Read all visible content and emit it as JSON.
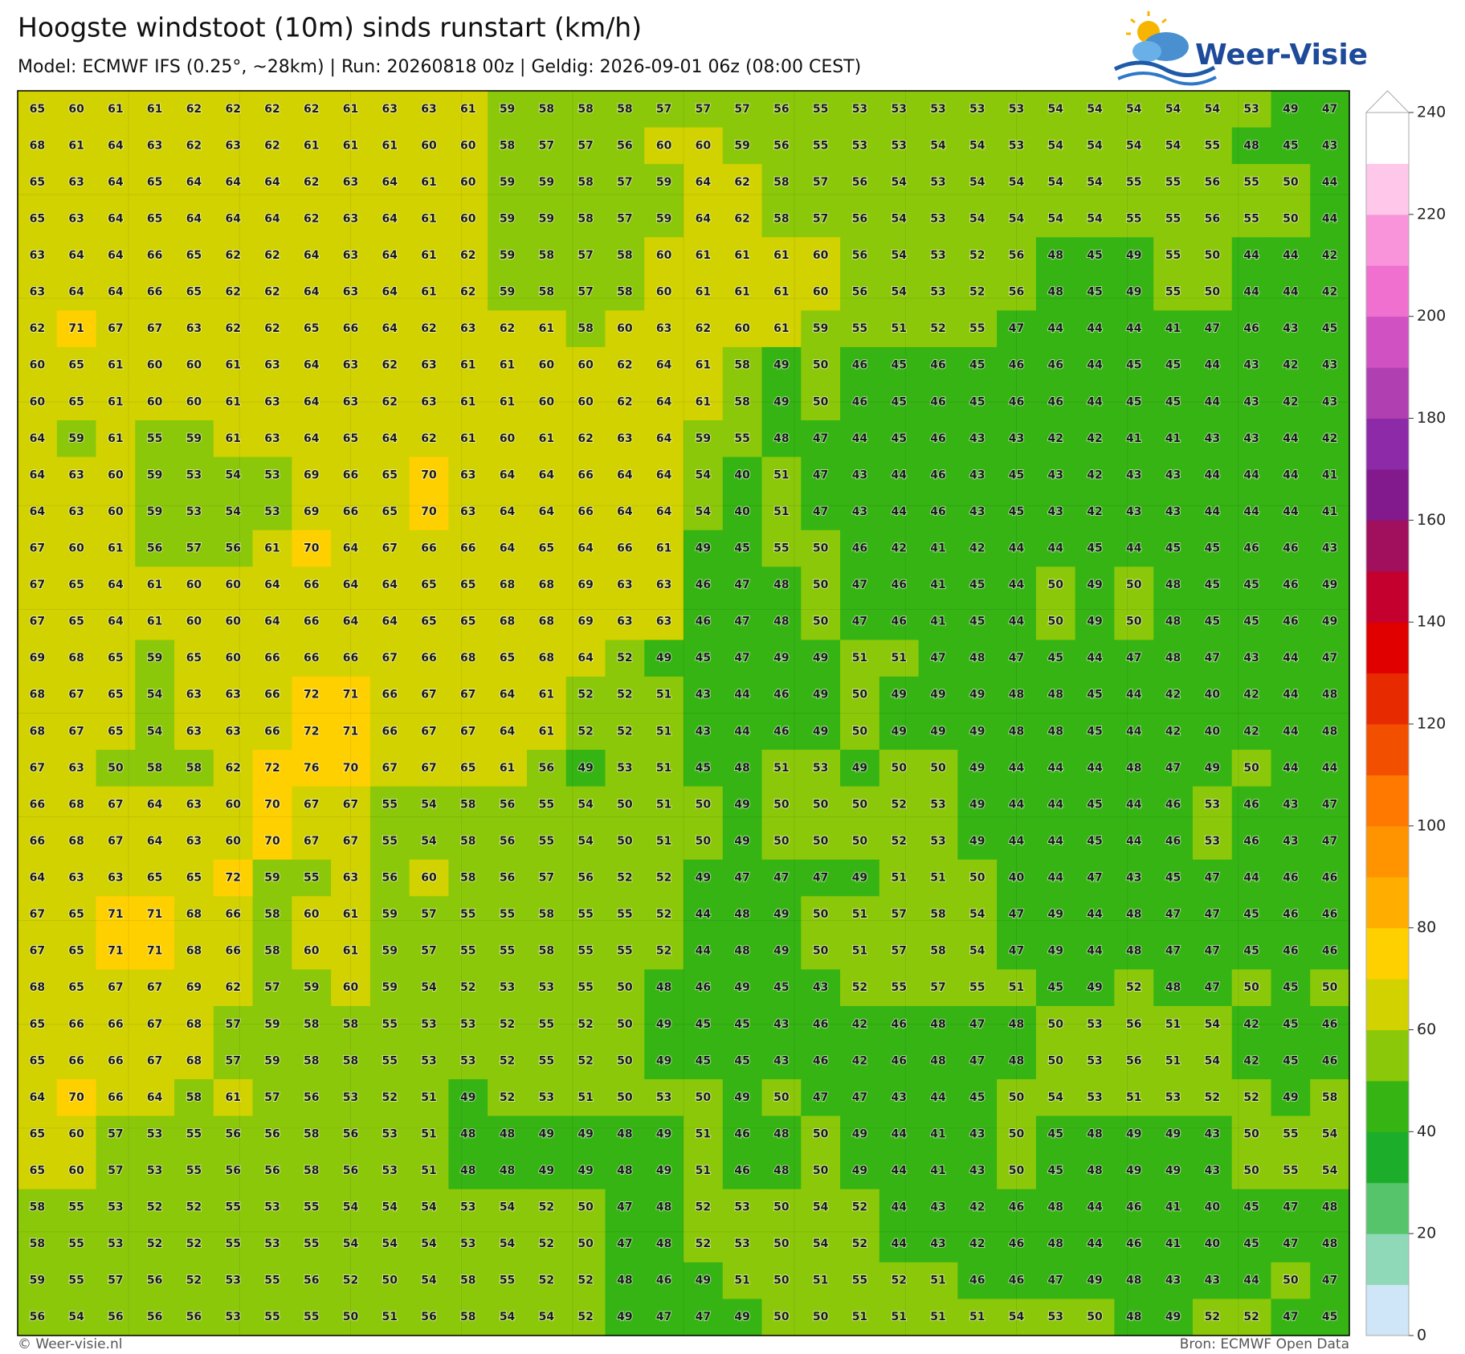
{
  "header": {
    "title": "Hoogste windstoot (10m) sinds runstart (km/h)",
    "subtitle": "Model: ECMWF IFS (0.25°, ~28km)  |  Run: 20260818 00z  |  Geldig: 2026-09-01 06z (08:00 CEST)"
  },
  "logo": {
    "text": "Weer-Visie"
  },
  "map": {
    "values": [
      [
        65,
        60,
        61,
        61,
        62,
        62,
        62,
        62,
        61,
        63,
        63,
        61,
        59,
        58,
        58,
        58,
        57,
        57,
        57,
        56,
        55,
        53,
        53,
        53,
        53,
        53,
        54,
        54,
        54,
        54,
        54,
        53,
        49,
        47
      ],
      [
        68,
        61,
        64,
        63,
        62,
        63,
        62,
        61,
        61,
        61,
        60,
        60,
        58,
        57,
        57,
        56,
        60,
        60,
        59,
        56,
        55,
        53,
        53,
        54,
        54,
        53,
        54,
        54,
        54,
        54,
        55,
        48,
        45,
        43
      ],
      [
        65,
        63,
        64,
        65,
        64,
        64,
        64,
        62,
        63,
        64,
        61,
        60,
        59,
        59,
        58,
        57,
        59,
        64,
        62,
        58,
        57,
        56,
        54,
        53,
        54,
        54,
        54,
        54,
        55,
        55,
        56,
        55,
        50,
        44
      ],
      [
        65,
        63,
        64,
        65,
        64,
        64,
        64,
        62,
        63,
        64,
        61,
        60,
        59,
        59,
        58,
        57,
        59,
        64,
        62,
        58,
        57,
        56,
        54,
        53,
        54,
        54,
        54,
        54,
        55,
        55,
        56,
        55,
        50,
        44
      ],
      [
        63,
        64,
        64,
        66,
        65,
        62,
        62,
        64,
        63,
        64,
        61,
        62,
        59,
        58,
        57,
        58,
        60,
        61,
        61,
        61,
        60,
        56,
        54,
        53,
        52,
        56,
        48,
        45,
        49,
        55,
        50,
        44,
        44,
        42
      ],
      [
        63,
        64,
        64,
        66,
        65,
        62,
        62,
        64,
        63,
        64,
        61,
        62,
        59,
        58,
        57,
        58,
        60,
        61,
        61,
        61,
        60,
        56,
        54,
        53,
        52,
        56,
        48,
        45,
        49,
        55,
        50,
        44,
        44,
        42
      ],
      [
        62,
        71,
        67,
        67,
        63,
        62,
        62,
        65,
        66,
        64,
        62,
        63,
        62,
        61,
        58,
        60,
        63,
        62,
        60,
        61,
        59,
        55,
        51,
        52,
        55,
        47,
        44,
        44,
        44,
        41,
        47,
        46,
        43,
        45
      ],
      [
        60,
        65,
        61,
        60,
        60,
        61,
        63,
        64,
        63,
        62,
        63,
        61,
        61,
        60,
        60,
        62,
        64,
        61,
        58,
        49,
        50,
        46,
        45,
        46,
        45,
        46,
        46,
        44,
        45,
        45,
        44,
        43,
        42,
        43
      ],
      [
        60,
        65,
        61,
        60,
        60,
        61,
        63,
        64,
        63,
        62,
        63,
        61,
        61,
        60,
        60,
        62,
        64,
        61,
        58,
        49,
        50,
        46,
        45,
        46,
        45,
        46,
        46,
        44,
        45,
        45,
        44,
        43,
        42,
        43
      ],
      [
        64,
        59,
        61,
        55,
        59,
        61,
        63,
        64,
        65,
        64,
        62,
        61,
        60,
        61,
        62,
        63,
        64,
        59,
        55,
        48,
        47,
        44,
        45,
        46,
        43,
        43,
        42,
        42,
        41,
        41,
        43,
        43,
        44,
        42
      ],
      [
        64,
        63,
        60,
        59,
        53,
        54,
        53,
        69,
        66,
        65,
        70,
        63,
        64,
        64,
        66,
        64,
        64,
        54,
        40,
        51,
        47,
        43,
        44,
        46,
        43,
        45,
        43,
        42,
        43,
        43,
        44,
        44,
        44,
        41
      ],
      [
        64,
        63,
        60,
        59,
        53,
        54,
        53,
        69,
        66,
        65,
        70,
        63,
        64,
        64,
        66,
        64,
        64,
        54,
        40,
        51,
        47,
        43,
        44,
        46,
        43,
        45,
        43,
        42,
        43,
        43,
        44,
        44,
        44,
        41
      ],
      [
        67,
        60,
        61,
        56,
        57,
        56,
        61,
        70,
        64,
        67,
        66,
        66,
        64,
        65,
        64,
        66,
        61,
        49,
        45,
        55,
        50,
        46,
        42,
        41,
        42,
        44,
        44,
        45,
        44,
        45,
        45,
        46,
        46,
        43
      ],
      [
        67,
        65,
        64,
        61,
        60,
        60,
        64,
        66,
        64,
        64,
        65,
        65,
        68,
        68,
        69,
        63,
        63,
        46,
        47,
        48,
        50,
        47,
        46,
        41,
        45,
        44,
        50,
        49,
        50,
        48,
        45,
        45,
        46,
        49
      ],
      [
        67,
        65,
        64,
        61,
        60,
        60,
        64,
        66,
        64,
        64,
        65,
        65,
        68,
        68,
        69,
        63,
        63,
        46,
        47,
        48,
        50,
        47,
        46,
        41,
        45,
        44,
        50,
        49,
        50,
        48,
        45,
        45,
        46,
        49
      ],
      [
        69,
        68,
        65,
        59,
        65,
        60,
        66,
        66,
        66,
        67,
        66,
        68,
        65,
        68,
        64,
        52,
        49,
        45,
        47,
        49,
        49,
        51,
        51,
        47,
        48,
        47,
        45,
        44,
        47,
        48,
        47,
        43,
        44,
        47
      ],
      [
        68,
        67,
        65,
        54,
        63,
        63,
        66,
        72,
        71,
        66,
        67,
        67,
        64,
        61,
        52,
        52,
        51,
        43,
        44,
        46,
        49,
        50,
        49,
        49,
        49,
        48,
        48,
        45,
        44,
        42,
        40,
        42,
        44,
        48
      ],
      [
        68,
        67,
        65,
        54,
        63,
        63,
        66,
        72,
        71,
        66,
        67,
        67,
        64,
        61,
        52,
        52,
        51,
        43,
        44,
        46,
        49,
        50,
        49,
        49,
        49,
        48,
        48,
        45,
        44,
        42,
        40,
        42,
        44,
        48
      ],
      [
        67,
        63,
        50,
        58,
        58,
        62,
        72,
        76,
        70,
        67,
        67,
        65,
        61,
        56,
        49,
        53,
        51,
        45,
        48,
        51,
        53,
        49,
        50,
        50,
        49,
        44,
        44,
        44,
        48,
        47,
        49,
        50,
        44,
        44
      ],
      [
        66,
        68,
        67,
        64,
        63,
        60,
        70,
        67,
        67,
        55,
        54,
        58,
        56,
        55,
        54,
        50,
        51,
        50,
        49,
        50,
        50,
        50,
        52,
        53,
        49,
        44,
        44,
        45,
        44,
        46,
        53,
        46,
        43,
        47
      ],
      [
        66,
        68,
        67,
        64,
        63,
        60,
        70,
        67,
        67,
        55,
        54,
        58,
        56,
        55,
        54,
        50,
        51,
        50,
        49,
        50,
        50,
        50,
        52,
        53,
        49,
        44,
        44,
        45,
        44,
        46,
        53,
        46,
        43,
        47
      ],
      [
        64,
        63,
        63,
        65,
        65,
        72,
        59,
        55,
        63,
        56,
        60,
        58,
        56,
        57,
        56,
        52,
        52,
        49,
        47,
        47,
        47,
        49,
        51,
        51,
        50,
        40,
        44,
        47,
        43,
        45,
        47,
        44,
        46,
        46
      ],
      [
        67,
        65,
        71,
        71,
        68,
        66,
        58,
        60,
        61,
        59,
        57,
        55,
        55,
        58,
        55,
        55,
        52,
        44,
        48,
        49,
        50,
        51,
        57,
        58,
        54,
        47,
        49,
        44,
        48,
        47,
        47,
        45,
        46,
        46
      ],
      [
        67,
        65,
        71,
        71,
        68,
        66,
        58,
        60,
        61,
        59,
        57,
        55,
        55,
        58,
        55,
        55,
        52,
        44,
        48,
        49,
        50,
        51,
        57,
        58,
        54,
        47,
        49,
        44,
        48,
        47,
        47,
        45,
        46,
        46
      ],
      [
        68,
        65,
        67,
        67,
        69,
        62,
        57,
        59,
        60,
        59,
        54,
        52,
        53,
        53,
        55,
        50,
        48,
        46,
        49,
        45,
        43,
        52,
        55,
        57,
        55,
        51,
        45,
        49,
        52,
        48,
        47,
        50,
        45,
        50
      ],
      [
        65,
        66,
        66,
        67,
        68,
        57,
        59,
        58,
        58,
        55,
        53,
        53,
        52,
        55,
        52,
        50,
        49,
        45,
        45,
        43,
        46,
        42,
        46,
        48,
        47,
        48,
        50,
        53,
        56,
        51,
        54,
        42,
        45,
        46
      ],
      [
        65,
        66,
        66,
        67,
        68,
        57,
        59,
        58,
        58,
        55,
        53,
        53,
        52,
        55,
        52,
        50,
        49,
        45,
        45,
        43,
        46,
        42,
        46,
        48,
        47,
        48,
        50,
        53,
        56,
        51,
        54,
        42,
        45,
        46
      ],
      [
        64,
        70,
        66,
        64,
        58,
        61,
        57,
        56,
        53,
        52,
        51,
        49,
        52,
        53,
        51,
        50,
        53,
        50,
        49,
        50,
        47,
        47,
        43,
        44,
        45,
        50,
        54,
        53,
        51,
        53,
        52,
        52,
        49,
        58
      ],
      [
        65,
        60,
        57,
        53,
        55,
        56,
        56,
        58,
        56,
        53,
        51,
        48,
        48,
        49,
        49,
        48,
        49,
        51,
        46,
        48,
        50,
        49,
        44,
        41,
        43,
        50,
        45,
        48,
        49,
        49,
        43,
        50,
        55,
        54
      ],
      [
        65,
        60,
        57,
        53,
        55,
        56,
        56,
        58,
        56,
        53,
        51,
        48,
        48,
        49,
        49,
        48,
        49,
        51,
        46,
        48,
        50,
        49,
        44,
        41,
        43,
        50,
        45,
        48,
        49,
        49,
        43,
        50,
        55,
        54
      ],
      [
        58,
        55,
        53,
        52,
        52,
        55,
        53,
        55,
        54,
        54,
        54,
        53,
        54,
        52,
        50,
        47,
        48,
        52,
        53,
        50,
        54,
        52,
        44,
        43,
        42,
        46,
        48,
        44,
        46,
        41,
        40,
        45,
        47,
        48
      ],
      [
        58,
        55,
        53,
        52,
        52,
        55,
        53,
        55,
        54,
        54,
        54,
        53,
        54,
        52,
        50,
        47,
        48,
        52,
        53,
        50,
        54,
        52,
        44,
        43,
        42,
        46,
        48,
        44,
        46,
        41,
        40,
        45,
        47,
        48
      ],
      [
        59,
        55,
        57,
        56,
        52,
        53,
        55,
        56,
        52,
        50,
        54,
        58,
        55,
        52,
        52,
        48,
        46,
        49,
        51,
        50,
        51,
        55,
        52,
        51,
        46,
        46,
        47,
        49,
        48,
        43,
        43,
        44,
        50,
        47
      ],
      [
        56,
        54,
        56,
        56,
        56,
        53,
        55,
        55,
        50,
        51,
        56,
        58,
        54,
        54,
        52,
        49,
        47,
        47,
        49,
        50,
        50,
        51,
        51,
        51,
        51,
        54,
        53,
        50,
        48,
        49,
        52,
        52,
        47,
        45
      ]
    ]
  },
  "colorbar": {
    "lim": [
      0,
      240
    ],
    "ticks": [
      0,
      20,
      40,
      60,
      80,
      100,
      120,
      140,
      160,
      180,
      200,
      220,
      240
    ],
    "colors": [
      "#cfe6f8",
      "#8fd9b8",
      "#55c46a",
      "#1cae2a",
      "#36b414",
      "#8cc80a",
      "#d2d200",
      "#ffd000",
      "#ffae00",
      "#ff9400",
      "#ff7800",
      "#f25000",
      "#e82a00",
      "#e00000",
      "#c4002e",
      "#a0105c",
      "#821a8e",
      "#8c2aa8",
      "#b040b2",
      "#d052c2",
      "#f070d0",
      "#fa94da",
      "#ffc8ea",
      "#ffffff"
    ]
  },
  "footer": {
    "credit": "© Weer-visie.nl",
    "source": "Bron: ECMWF Open Data"
  }
}
